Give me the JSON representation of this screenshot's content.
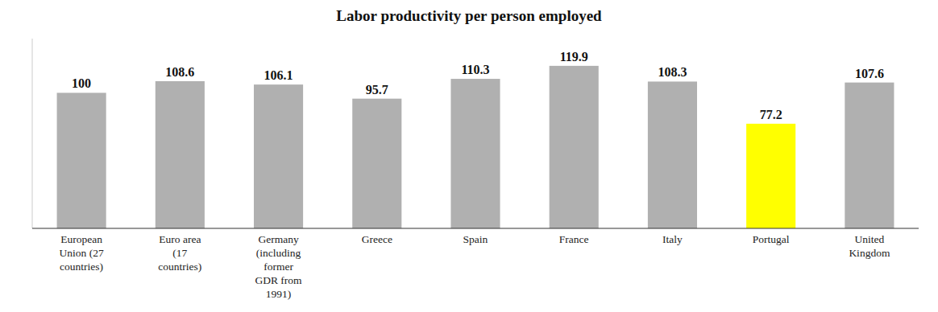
{
  "chart_data": {
    "type": "bar",
    "title": "Labor productivity per person employed",
    "categories": [
      "European\nUnion (27\ncountries)",
      "Euro area\n(17\ncountries)",
      "Germany\n(including\nformer\nGDR from\n1991)",
      "Greece",
      "Spain",
      "France",
      "Italy",
      "Portugal",
      "United\nKingdom"
    ],
    "values": [
      100,
      108.6,
      106.1,
      95.7,
      110.3,
      119.9,
      108.3,
      77.2,
      107.6
    ],
    "colors": [
      "#b0b0b0",
      "#b0b0b0",
      "#b0b0b0",
      "#b0b0b0",
      "#b0b0b0",
      "#b0b0b0",
      "#b0b0b0",
      "#ffff00",
      "#b0b0b0"
    ],
    "ylim": [
      0,
      140
    ],
    "data_labels": true,
    "tick_labels": "x",
    "grid": false
  }
}
